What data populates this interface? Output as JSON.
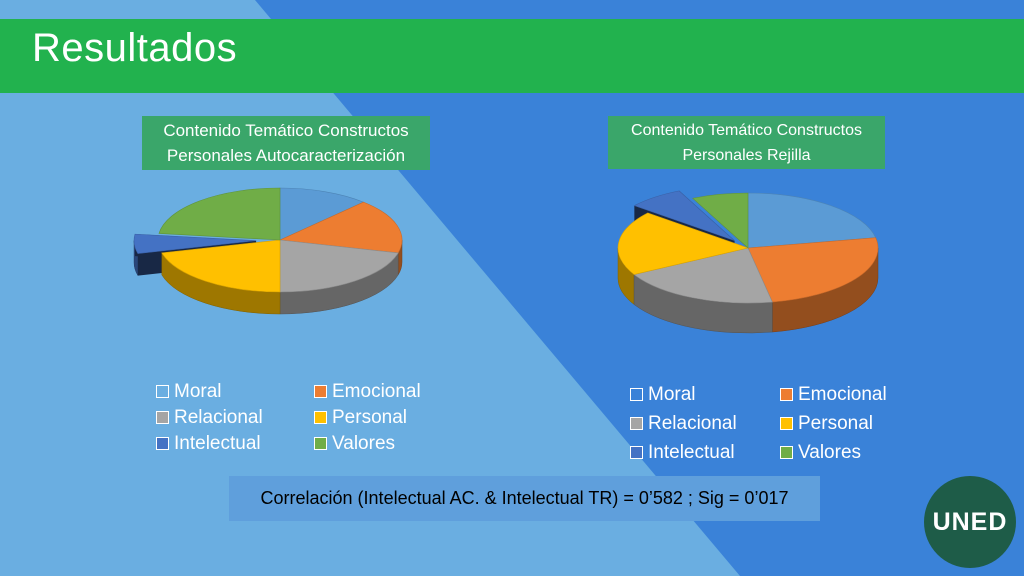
{
  "slide": {
    "title": "Resultados",
    "correlation": "Correlación (Intelectual AC. & Intelectual TR) = 0’582 ; Sig = 0’017",
    "logo_text": "UNED"
  },
  "colors": {
    "title_bar": "#22b24e",
    "background_dark": "#3a82d8",
    "background_light": "#6aaee1",
    "chart_title_bg": "#3aa66a",
    "logo_bg": "#1e5c48"
  },
  "legend_labels": [
    "Moral",
    "Emocional",
    "Relacional",
    "Personal",
    "Intelectual",
    "Valores"
  ],
  "chart_data": [
    {
      "type": "pie",
      "title": "Contenido Temático Constructos Personales Autocaracterización",
      "categories": [
        "Moral",
        "Emocional",
        "Relacional",
        "Personal",
        "Intelectual",
        "Valores"
      ],
      "values": [
        12,
        17,
        21,
        21,
        6,
        23
      ],
      "colors": [
        "#5b9bd5",
        "#ed7d31",
        "#a5a5a5",
        "#ffc000",
        "#4472c4",
        "#70ad47"
      ],
      "exploded": "Intelectual",
      "legend_position": "bottom"
    },
    {
      "type": "pie",
      "title": "Contenido Temático Constructos Personales Rejilla",
      "categories": [
        "Moral",
        "Emocional",
        "Relacional",
        "Personal",
        "Intelectual",
        "Valores"
      ],
      "values": [
        22,
        25,
        20,
        19,
        7,
        7
      ],
      "colors": [
        "#5b9bd5",
        "#ed7d31",
        "#a5a5a5",
        "#ffc000",
        "#4472c4",
        "#70ad47"
      ],
      "exploded": "Intelectual",
      "legend_position": "bottom"
    }
  ]
}
